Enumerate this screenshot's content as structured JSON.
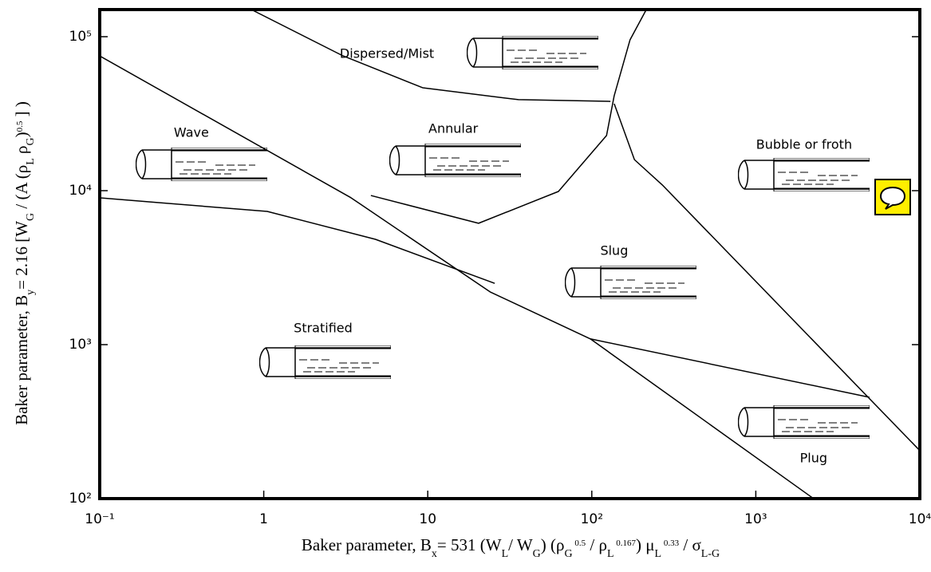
{
  "chart_data": {
    "type": "line",
    "log_x": true,
    "log_y": true,
    "xlim": [
      0.1,
      10000
    ],
    "ylim": [
      100,
      150000
    ],
    "xticks": [
      {
        "value": 0.1,
        "label": "10⁻¹"
      },
      1,
      10,
      {
        "value": 100,
        "label": "10²"
      },
      {
        "value": 1000,
        "label": "10³"
      },
      {
        "value": 10000,
        "label": "10⁴"
      }
    ],
    "yticks": [
      {
        "value": 100,
        "label": "10²"
      },
      {
        "value": 1000,
        "label": "10³"
      },
      {
        "value": 10000,
        "label": "10⁴"
      },
      {
        "value": 100000,
        "label": "10⁵"
      }
    ],
    "xlabel": [
      [
        "Baker parameter, ",
        ""
      ],
      [
        "B",
        ""
      ],
      [
        "x",
        "sub"
      ],
      [
        "= 531 (W",
        ""
      ],
      [
        "L",
        "sub"
      ],
      [
        "/ W",
        ""
      ],
      [
        "G",
        "sub"
      ],
      [
        ") (ρ",
        ""
      ],
      [
        "G",
        "sub"
      ],
      [
        " 0.5",
        "sup"
      ],
      [
        " / ρ",
        ""
      ],
      [
        "L",
        "sub"
      ],
      [
        " 0.167",
        "sup"
      ],
      [
        ") μ",
        ""
      ],
      [
        "L",
        "sub"
      ],
      [
        " 0.33",
        "sup"
      ],
      [
        " / σ",
        ""
      ],
      [
        "L-G",
        "sub"
      ]
    ],
    "ylabel": [
      [
        "Baker parameter, B",
        ""
      ],
      [
        "y",
        "sub"
      ],
      [
        "= 2.16 [W",
        ""
      ],
      [
        "G",
        "sub"
      ],
      [
        " / (A (ρ",
        ""
      ],
      [
        "L",
        "sub"
      ],
      [
        " ρ",
        ""
      ],
      [
        "G",
        "sub"
      ],
      [
        ")",
        ""
      ],
      [
        "0.5",
        "sup"
      ],
      [
        " ] )",
        ""
      ]
    ],
    "series": [
      {
        "color": "#000000",
        "x": [
          0.1,
          3.4,
          24,
          98,
          2250
        ],
        "values": [
          75000,
          9000,
          2200,
          1090,
          100
        ]
      },
      {
        "color": "#000000",
        "x": [
          0.1,
          1.05,
          4.8,
          25.6
        ],
        "values": [
          8980,
          7330,
          4830,
          2500
        ]
      },
      {
        "color": "#000000",
        "x": [
          4.5,
          20.4,
          62.6,
          123,
          137,
          171,
          215
        ],
        "values": [
          9300,
          6140,
          9880,
          22800,
          41400,
          95300,
          150000
        ]
      },
      {
        "color": "#000000",
        "x": [
          0.84,
          3.04,
          9.3,
          35.7,
          130
        ],
        "values": [
          150000,
          75100,
          46600,
          39000,
          38000
        ]
      },
      {
        "color": "#000000",
        "x": [
          137,
          182,
          269,
          10000
        ],
        "values": [
          36700,
          15900,
          10900,
          205
        ]
      },
      {
        "color": "#000000",
        "x": [
          98,
          4930
        ],
        "values": [
          1090,
          455
        ]
      }
    ],
    "annotations": [
      {
        "text": "Dispersed/Mist",
        "x": 5.64,
        "y": 76900
      },
      {
        "text": "Annular",
        "x": 14.3,
        "y": 25100
      },
      {
        "text": "Wave",
        "x": 0.362,
        "y": 23600
      },
      {
        "text": "Bubble or froth",
        "x": 1970,
        "y": 19700
      },
      {
        "text": "Slug",
        "x": 137,
        "y": 4040
      },
      {
        "text": "Stratified",
        "x": 2.3,
        "y": 1270
      },
      {
        "text": "Plug",
        "x": 2250,
        "y": 182
      }
    ]
  }
}
